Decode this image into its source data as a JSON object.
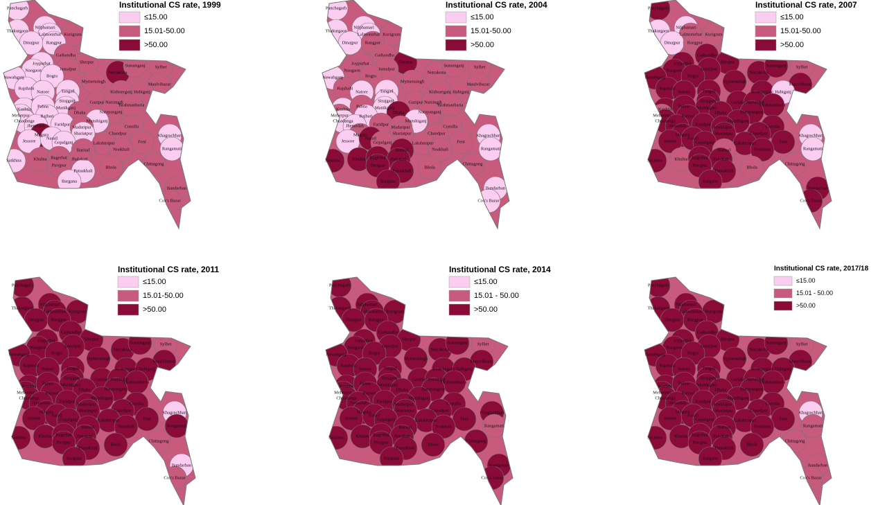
{
  "maps": [
    {
      "title": "Institutional CS rate, 1999",
      "legend": [
        {
          "label": "≤15.00",
          "color": "#fbcdf0"
        },
        {
          "label": "15.01-50.00",
          "color": "#c85a7e"
        },
        {
          "label": ">50.00",
          "color": "#8a0a38"
        }
      ],
      "classes": [
        0,
        0,
        0,
        0,
        1,
        0,
        0,
        1,
        0,
        1,
        0,
        1,
        2,
        1,
        1,
        0,
        0,
        1,
        1,
        0,
        0,
        0,
        1,
        1,
        0,
        0,
        0,
        0,
        1,
        1,
        1,
        0,
        0,
        1,
        0,
        0,
        1,
        0,
        0,
        1,
        1,
        2,
        0,
        1,
        0,
        0,
        0,
        0,
        1,
        1,
        0,
        1,
        1,
        0,
        1,
        1,
        1,
        1,
        1,
        0,
        1,
        1,
        1,
        0
      ]
    },
    {
      "title": "Institutional CS rate, 2004",
      "legend": [
        {
          "label": "≤15.00",
          "color": "#fbcdf0"
        },
        {
          "label": "15.01-50.00",
          "color": "#c85a7e"
        },
        {
          "label": ">50.00",
          "color": "#8a0a38"
        }
      ],
      "classes": [
        0,
        0,
        0,
        0,
        1,
        0,
        1,
        1,
        1,
        2,
        1,
        1,
        1,
        1,
        1,
        0,
        1,
        1,
        1,
        1,
        0,
        0,
        1,
        1,
        0,
        0,
        1,
        0,
        1,
        1,
        1,
        1,
        0,
        1,
        0,
        0,
        2,
        1,
        0,
        1,
        1,
        1,
        1,
        1,
        0,
        2,
        1,
        0,
        1,
        1,
        0,
        2,
        1,
        2,
        2,
        2,
        2,
        2,
        1,
        2,
        1,
        0,
        0,
        2
      ]
    },
    {
      "title": "Institutional CS rate, 2007",
      "legend": [
        {
          "label": "≤15.00",
          "color": "#fbcdf0"
        },
        {
          "label": "15.01-50.00",
          "color": "#c85a7e"
        },
        {
          "label": ">50.00",
          "color": "#8a0a38"
        }
      ],
      "classes": [
        2,
        0,
        0,
        1,
        1,
        0,
        1,
        2,
        2,
        2,
        2,
        2,
        2,
        2,
        1,
        2,
        2,
        2,
        2,
        2,
        2,
        2,
        2,
        0,
        2,
        2,
        2,
        2,
        2,
        2,
        2,
        1,
        2,
        2,
        2,
        2,
        2,
        2,
        2,
        2,
        2,
        2,
        2,
        2,
        2,
        2,
        2,
        0,
        2,
        2,
        0,
        1,
        2,
        2,
        1,
        2,
        2,
        2,
        1,
        2,
        1,
        2,
        2,
        2
      ]
    },
    {
      "title": "Institutional CS rate, 2011",
      "legend": [
        {
          "label": "≤15.00",
          "color": "#fbcdf0"
        },
        {
          "label": "15.01-50.00",
          "color": "#c85a7e"
        },
        {
          "label": ">50.00",
          "color": "#8a0a38"
        }
      ],
      "classes": [
        2,
        2,
        2,
        2,
        2,
        2,
        2,
        2,
        2,
        2,
        2,
        2,
        2,
        2,
        1,
        2,
        2,
        2,
        2,
        2,
        2,
        2,
        2,
        2,
        2,
        2,
        2,
        2,
        2,
        2,
        2,
        2,
        2,
        2,
        2,
        2,
        2,
        2,
        2,
        2,
        2,
        2,
        2,
        2,
        2,
        2,
        2,
        0,
        2,
        2,
        2,
        2,
        2,
        2,
        2,
        2,
        2,
        2,
        1,
        2,
        2,
        0,
        1,
        2
      ]
    },
    {
      "title": "Institutional CS rate, 2014",
      "legend": [
        {
          "label": "≤15.00",
          "color": "#fbcdf0"
        },
        {
          "label": "15.01 - 50.00",
          "color": "#c85a7e"
        },
        {
          "label": ">50.00",
          "color": "#8a0a38"
        }
      ],
      "classes": [
        2,
        2,
        2,
        2,
        2,
        2,
        2,
        2,
        2,
        2,
        2,
        2,
        2,
        2,
        1,
        2,
        2,
        2,
        2,
        2,
        2,
        2,
        2,
        2,
        2,
        2,
        2,
        2,
        2,
        2,
        2,
        2,
        2,
        2,
        2,
        2,
        2,
        2,
        2,
        2,
        2,
        2,
        2,
        2,
        2,
        2,
        2,
        2,
        2,
        2,
        1,
        2,
        2,
        2,
        2,
        2,
        2,
        2,
        2,
        2,
        2,
        2,
        2,
        2
      ]
    },
    {
      "title": "Institutional CS rate, 2017/18",
      "legend": [
        {
          "label": "≤15.00",
          "color": "#fbcdf0"
        },
        {
          "label": "15.01 - 50.00",
          "color": "#c85a7e"
        },
        {
          "label": ">50.00",
          "color": "#8a0a38"
        }
      ],
      "classes": [
        2,
        2,
        2,
        2,
        2,
        2,
        2,
        2,
        2,
        2,
        2,
        2,
        2,
        2,
        1,
        2,
        2,
        2,
        2,
        2,
        2,
        2,
        2,
        2,
        2,
        2,
        2,
        2,
        2,
        2,
        2,
        2,
        2,
        2,
        2,
        2,
        2,
        2,
        2,
        2,
        2,
        2,
        2,
        2,
        2,
        2,
        2,
        0,
        2,
        2,
        1,
        2,
        2,
        2,
        2,
        2,
        2,
        2,
        1,
        2,
        2,
        1,
        1,
        2
      ]
    }
  ],
  "districts": [
    "Panchagarh",
    "Thakurgaon",
    "Nilphamari",
    "Lalmonirhat",
    "Kurigram",
    "Dinajpur",
    "Rangpur",
    "Gaibandha",
    "Joypurhat",
    "Sherpur",
    "Naogaon",
    "Jamalpur",
    "Netrakona",
    "Sunamganj",
    "Sylhet",
    "Nawabganj",
    "Bogra",
    "Mymensingh",
    "Maulvibazar",
    "Rajshahi",
    "Natore",
    "Tangail",
    "Kishoreganj",
    "Habiganj",
    "Sirajganj",
    "Kushtia",
    "Pabna",
    "Manikganj",
    "Gazipur",
    "Narsingdi",
    "Brahmanbaria",
    "Meherpur",
    "Rajbari",
    "Narayanganj",
    "Chuadanga",
    "Jhenaidah",
    "Dhaka",
    "Faridpur",
    "Munshiganj",
    "Madaripur",
    "Comilla",
    "Magura",
    "Shariatpur",
    "Chandpur",
    "Jessore",
    "Narail",
    "Gopalganj",
    "Khagrachhari",
    "Lakshmipur",
    "Feni",
    "Rangamati",
    "Barisal",
    "Noakhali",
    "Satkhira",
    "Khulna",
    "Bagerhat",
    "Jhalokati",
    "Pirojpur",
    "Chittagong",
    "Patuakhali",
    "Bhola",
    "Bandarban",
    "Cox's Bazar",
    "Barguna"
  ]
}
